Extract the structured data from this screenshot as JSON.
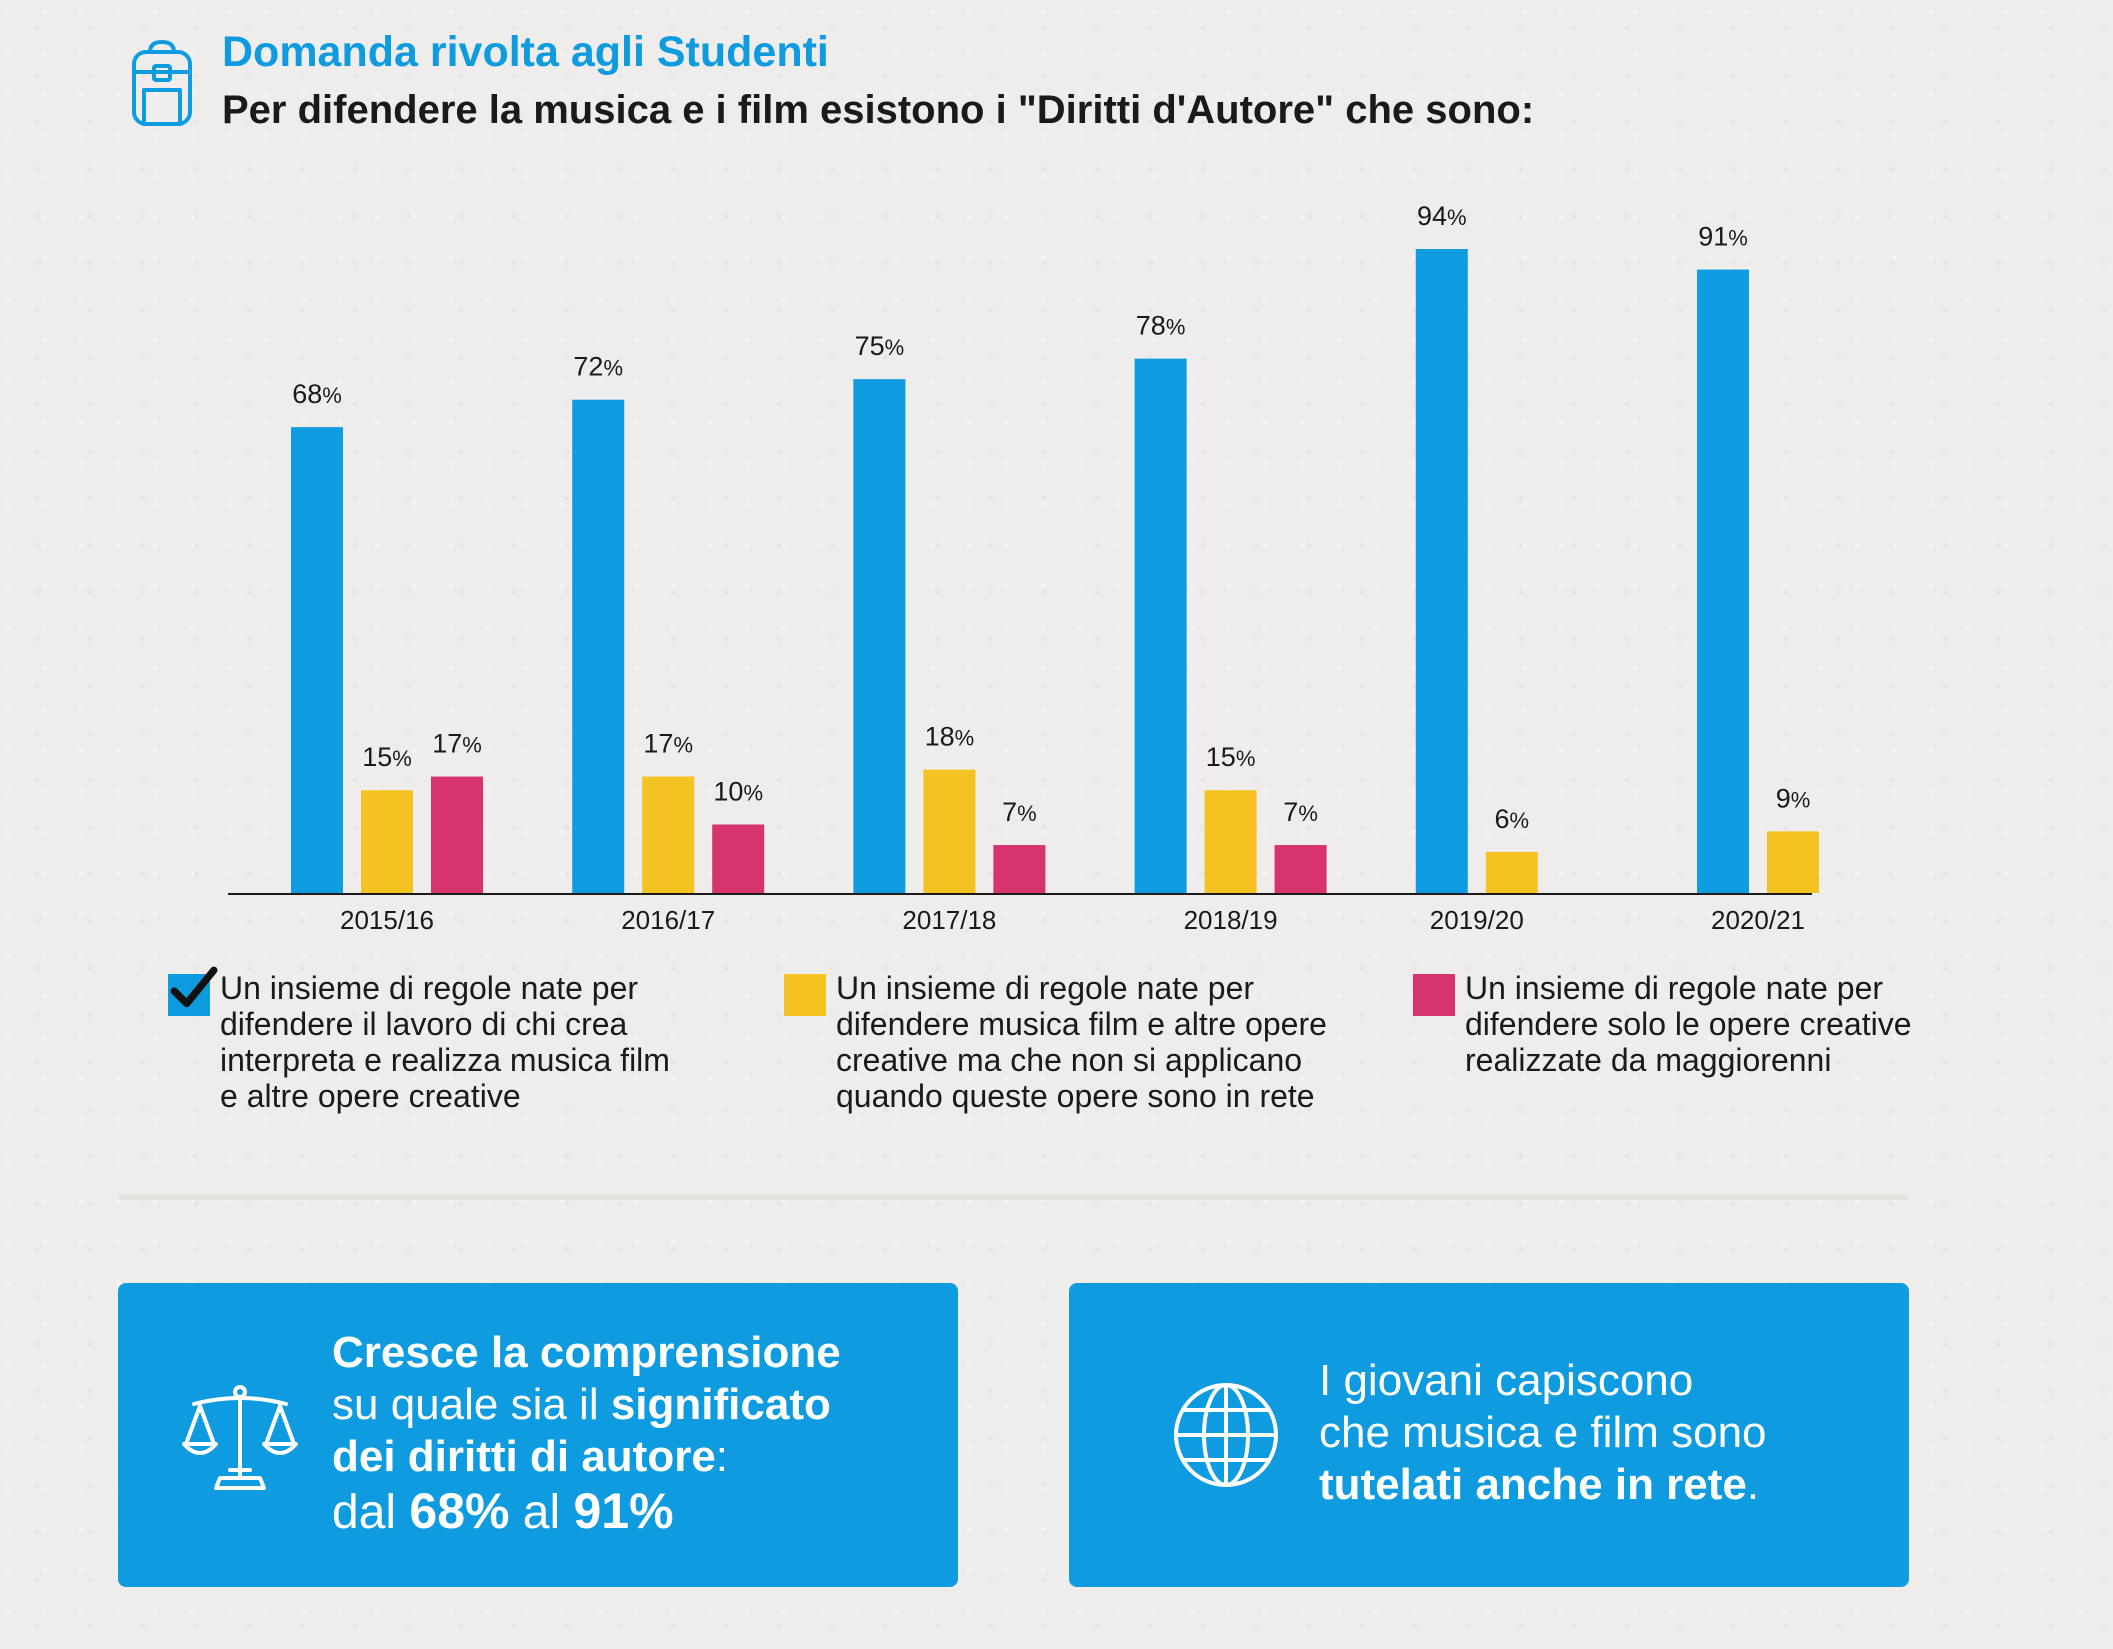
{
  "header": {
    "title": "Domanda rivolta agli Studenti",
    "question": "Per difendere la musica e i film esistono i \"Diritti d'Autore\" che sono:"
  },
  "colors": {
    "blue": "#0e9bdf",
    "yellow": "#f4c321",
    "pink": "#d7336f",
    "text": "#1a1a1a",
    "card_text": "#ffffff"
  },
  "chart_data": {
    "type": "bar",
    "categories": [
      "2015/16",
      "2016/17",
      "2017/18",
      "2018/19",
      "2019/20",
      "2020/21"
    ],
    "series": [
      {
        "name": "Un insieme di regole nate per difendere il lavoro di chi crea interpreta e realizza musica film e altre opere creative",
        "color": "#0e9bdf",
        "values": [
          68,
          72,
          75,
          78,
          94,
          91
        ]
      },
      {
        "name": "Un insieme di regole nate per difendere musica film e altre opere creative ma che non si applicano quando queste opere sono in rete",
        "color": "#f4c321",
        "values": [
          15,
          17,
          18,
          15,
          6,
          9
        ]
      },
      {
        "name": "Un insieme di regole nate per difendere solo le opere creative realizzate da maggiorenni",
        "color": "#d7336f",
        "values": [
          17,
          10,
          7,
          7,
          null,
          null
        ]
      }
    ],
    "value_suffix": "%",
    "ylim": [
      0,
      100
    ],
    "grid": false,
    "legend_position": "bottom",
    "xlabel": "",
    "ylabel": ""
  },
  "legend": [
    {
      "lines": [
        "Un insieme di regole nate per",
        "difendere il lavoro di chi crea",
        "interpreta e realizza musica film",
        "e altre opere creative"
      ],
      "color": "#0e9bdf",
      "checked": true
    },
    {
      "lines": [
        "Un insieme di regole nate per",
        "difendere musica film e altre opere",
        "creative ma che non si applicano",
        "quando queste opere sono in rete"
      ],
      "color": "#f4c321",
      "checked": false
    },
    {
      "lines": [
        "Un insieme di regole nate per",
        "difendere solo le opere creative",
        "realizzate da maggiorenni"
      ],
      "color": "#d7336f",
      "checked": false
    }
  ],
  "cards": {
    "left": {
      "icon": "scales-icon",
      "line1": "Cresce la comprensione",
      "line2_a": "su quale sia il ",
      "line2_b": "significato",
      "line3_a": "dei diritti di autore",
      "line3_b": ":",
      "line4_a": "dal ",
      "line4_b": "68%",
      "line4_c": " al ",
      "line4_d": "91%"
    },
    "right": {
      "icon": "globe-icon",
      "line1": "I giovani capiscono",
      "line2": "che musica e film sono",
      "line3_a": "tutelati anche in rete",
      "line3_b": "."
    }
  }
}
